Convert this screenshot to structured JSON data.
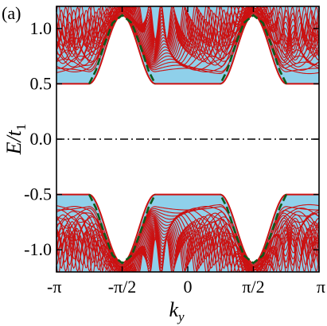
{
  "chart_data": {
    "type": "line",
    "panel_label": "(a)",
    "xlabel": "k",
    "xlabel_sub": "y",
    "ylabel": "E/t",
    "ylabel_sub": "1",
    "xlim": [
      -3.14159,
      3.14159
    ],
    "ylim": [
      -1.2,
      1.2
    ],
    "x_ticks": [
      {
        "value": -3.14159,
        "label": "-π"
      },
      {
        "value": -1.5708,
        "label": "-π/2"
      },
      {
        "value": 0,
        "label": "0"
      },
      {
        "value": 1.5708,
        "label": "π/2"
      },
      {
        "value": 3.14159,
        "label": "π"
      }
    ],
    "y_ticks": [
      {
        "value": 1.0,
        "label": "1.0"
      },
      {
        "value": 0.5,
        "label": "0.5"
      },
      {
        "value": 0.0,
        "label": "0.0"
      },
      {
        "value": -0.5,
        "label": "-0.5"
      },
      {
        "value": -1.0,
        "label": "-1.0"
      }
    ],
    "band_edge": 0.5,
    "band_top": 1.2,
    "series": [
      {
        "role": "bulk-continuum",
        "color": "#8fd0ea",
        "description_visible": false
      },
      {
        "role": "bulk-bands",
        "color": "#cc1111",
        "band_count": 22,
        "style": "solid"
      },
      {
        "role": "edge-states",
        "color": "#0b5a1a",
        "style": "dashed",
        "x": [
          -2.36,
          -2.2,
          -2.0,
          -1.8,
          -1.57,
          -1.34,
          -1.14,
          -0.94,
          -0.78
        ],
        "y": [
          0.5,
          0.62,
          0.85,
          1.05,
          1.12,
          1.05,
          0.85,
          0.62,
          0.5
        ]
      },
      {
        "role": "zero-energy-line",
        "color": "#000000",
        "style": "dash-dot",
        "y": 0.0
      }
    ],
    "grid": false,
    "legend": "none"
  },
  "colors": {
    "fill": "#8fd0ea",
    "bands": "#cc1111",
    "edge": "#0b5a1a",
    "axis": "#000000"
  }
}
